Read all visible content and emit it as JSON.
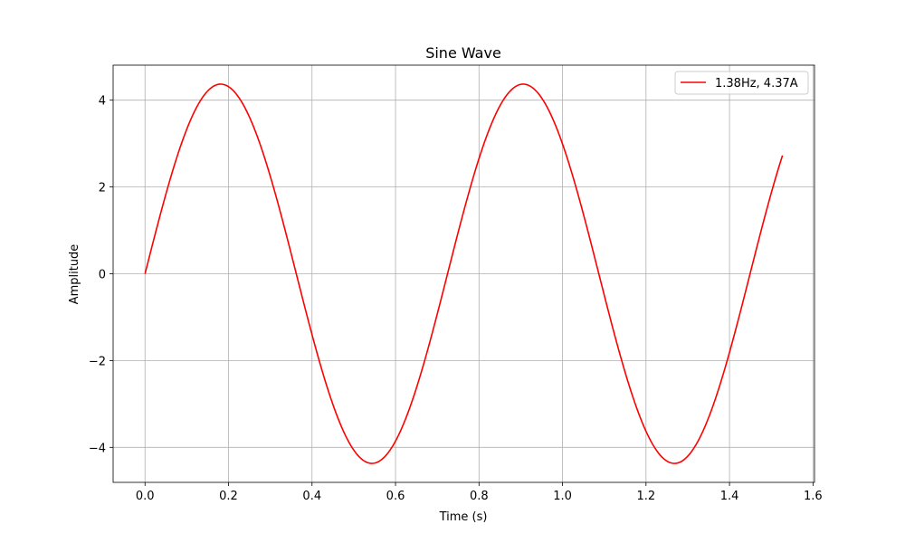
{
  "chart_data": {
    "type": "line",
    "title": "Sine Wave",
    "xlabel": "Time (s)",
    "ylabel": "Amplitude",
    "xlim": [
      -0.0764,
      1.6036
    ],
    "ylim": [
      -4.807,
      4.807
    ],
    "xticks": [
      0.0,
      0.2,
      0.4,
      0.6,
      0.8,
      1.0,
      1.2,
      1.4,
      1.6
    ],
    "xtick_labels": [
      "0.0",
      "0.2",
      "0.4",
      "0.6",
      "0.8",
      "1.0",
      "1.2",
      "1.4",
      "1.6"
    ],
    "yticks": [
      -4,
      -2,
      0,
      2,
      4
    ],
    "ytick_labels": [
      "−4",
      "−2",
      "0",
      "2",
      "4"
    ],
    "grid": true,
    "legend_position": "top-right",
    "series": [
      {
        "name": "1.38Hz, 4.37A",
        "color": "#ff0000",
        "function": "amplitude * sin(2*pi*frequency*t)",
        "frequency": 1.38,
        "amplitude": 4.37,
        "t_start": 0.0,
        "t_end": 1.527,
        "samples": 400
      }
    ]
  }
}
